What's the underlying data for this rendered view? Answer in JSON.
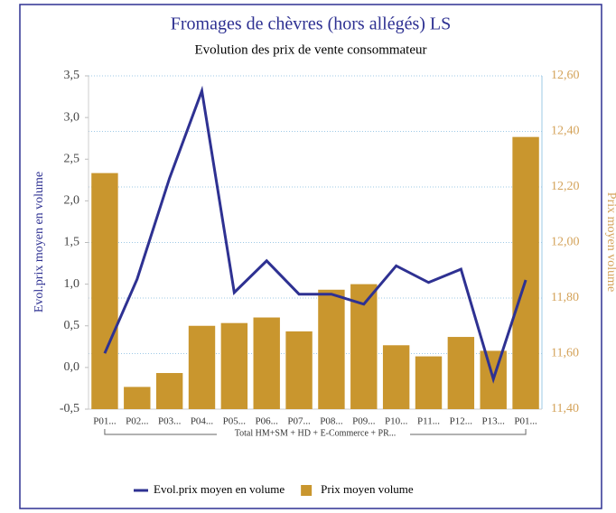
{
  "chart_data": {
    "type": "bar-line",
    "title": "Fromages de chèvres (hors allégés) LS",
    "subtitle": "Evolution des prix de vente consommateur",
    "y_label": "Evol.prix moyen en volume",
    "y2_label": "Prix moyen volume",
    "group_label": "Total HM+SM + HD + E-Commerce + PR...",
    "categories": [
      "P01...",
      "P02...",
      "P03...",
      "P04...",
      "P05...",
      "P06...",
      "P07...",
      "P08...",
      "P09...",
      "P10...",
      "P11...",
      "P12...",
      "P13...",
      "P01..."
    ],
    "series": [
      {
        "name": "Evol.prix moyen en volume",
        "type": "line",
        "color": "#2e3192",
        "axis": "y",
        "values": [
          0.17,
          1.06,
          2.27,
          3.32,
          0.9,
          1.28,
          0.88,
          0.88,
          0.76,
          1.22,
          1.02,
          1.18,
          -0.14,
          1.05
        ]
      },
      {
        "name": "Prix moyen volume",
        "type": "bar",
        "color": "#c9962e",
        "axis": "y2",
        "values": [
          12.25,
          11.48,
          11.53,
          11.7,
          11.71,
          11.73,
          11.68,
          11.83,
          11.85,
          11.63,
          11.59,
          11.66,
          11.61,
          12.38
        ]
      }
    ],
    "ylim": [
      -0.5,
      3.5
    ],
    "yticks": [
      {
        "value": -0.5,
        "label": "-0,5"
      },
      {
        "value": 0,
        "label": "0,0"
      },
      {
        "value": 0.5,
        "label": "0,5"
      },
      {
        "value": 1,
        "label": "1,0"
      },
      {
        "value": 1.5,
        "label": "1,5"
      },
      {
        "value": 2,
        "label": "2,0"
      },
      {
        "value": 2.5,
        "label": "2,5"
      },
      {
        "value": 3,
        "label": "3,0"
      },
      {
        "value": 3.5,
        "label": "3,5"
      }
    ],
    "y2lim": [
      11.4,
      12.6
    ],
    "y2ticks": [
      {
        "value": 11.4,
        "label": "11,40"
      },
      {
        "value": 11.6,
        "label": "11,60"
      },
      {
        "value": 11.8,
        "label": "11,80"
      },
      {
        "value": 12,
        "label": "12,00"
      },
      {
        "value": 12.2,
        "label": "12,20"
      },
      {
        "value": 12.4,
        "label": "12,40"
      },
      {
        "value": 12.6,
        "label": "12,60"
      }
    ],
    "grid": true,
    "legend": "bottom"
  }
}
